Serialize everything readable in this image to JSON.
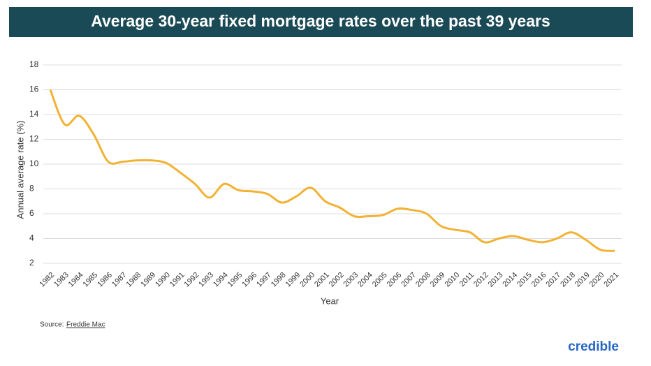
{
  "chart_data": {
    "type": "line",
    "title": "Average 30-year fixed mortgage rates over the past 39 years",
    "y_label": "Annual average rate (%)",
    "x_label": "Year",
    "source_label": "Source:",
    "source": "Freddie Mac",
    "brand": "credible",
    "categories": [
      "1982",
      "1983",
      "1984",
      "1985",
      "1986",
      "1987",
      "1988",
      "1989",
      "1990",
      "1991",
      "1992",
      "1993",
      "1994",
      "1995",
      "1996",
      "1997",
      "1998",
      "1999",
      "2000",
      "2001",
      "2002",
      "2003",
      "2004",
      "2005",
      "2006",
      "2007",
      "2008",
      "2009",
      "2010",
      "2011",
      "2012",
      "2013",
      "2014",
      "2015",
      "2016",
      "2017",
      "2018",
      "2019",
      "2020",
      "2021"
    ],
    "series": [
      {
        "name": "Rate",
        "color": "#f2b233",
        "values": [
          16.0,
          13.2,
          13.9,
          12.4,
          10.2,
          10.2,
          10.3,
          10.3,
          10.1,
          9.3,
          8.4,
          7.3,
          8.4,
          7.9,
          7.8,
          7.6,
          6.9,
          7.4,
          8.1,
          7.0,
          6.5,
          5.8,
          5.8,
          5.9,
          6.4,
          6.3,
          6.0,
          5.0,
          4.7,
          4.5,
          3.7,
          4.0,
          4.2,
          3.9,
          3.7,
          4.0,
          4.5,
          3.9,
          3.1,
          3.0
        ]
      }
    ],
    "ylim": [
      2,
      18
    ],
    "yticks": [
      2,
      4,
      6,
      8,
      10,
      12,
      14,
      16,
      18
    ],
    "grid": true
  }
}
